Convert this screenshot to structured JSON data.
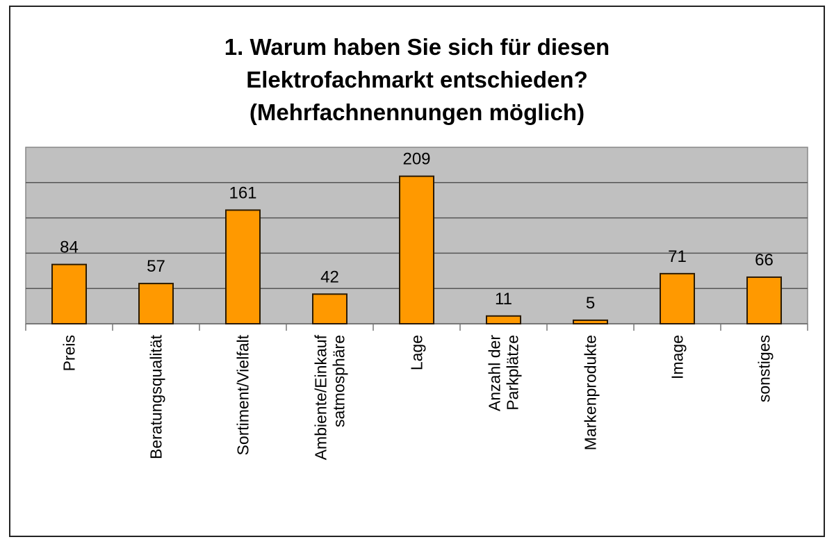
{
  "chart_data": {
    "type": "bar",
    "title_lines": [
      "1. Warum haben Sie sich für diesen",
      "Elektrofachmarkt entschieden?",
      "(Mehrfachnennungen möglich)"
    ],
    "categories": [
      [
        "Preis"
      ],
      [
        "Beratungsqualität"
      ],
      [
        "Sortiment/Vielfalt"
      ],
      [
        "Ambiente/Einkauf",
        "satmosphäre"
      ],
      [
        "Lage"
      ],
      [
        "Anzahl der",
        "Parkplätze"
      ],
      [
        "Markenprodukte"
      ],
      [
        "Image"
      ],
      [
        "sonstiges"
      ]
    ],
    "values": [
      84,
      57,
      161,
      42,
      209,
      11,
      5,
      71,
      66
    ],
    "ylim": [
      0,
      250
    ],
    "grid_step": 50,
    "grid": true,
    "y_tick_labels_shown": false,
    "legend": "none",
    "colors": {
      "bar": "#FF9900",
      "bar_edge": "#2a1a00",
      "plot_bg": "#C0C0C0",
      "grid": "#555555"
    }
  }
}
